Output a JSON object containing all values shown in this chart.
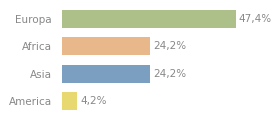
{
  "categories": [
    "Europa",
    "Africa",
    "Asia",
    "America"
  ],
  "values": [
    47.4,
    24.2,
    24.2,
    4.2
  ],
  "labels": [
    "47,4%",
    "24,2%",
    "24,2%",
    "4,2%"
  ],
  "bar_colors": [
    "#adc08a",
    "#e8b88a",
    "#7a9fc0",
    "#e8d870"
  ],
  "background_color": "#ffffff",
  "xlim": [
    0,
    58
  ],
  "bar_height": 0.65,
  "label_fontsize": 7.5,
  "category_fontsize": 7.5,
  "text_color": "#888888"
}
